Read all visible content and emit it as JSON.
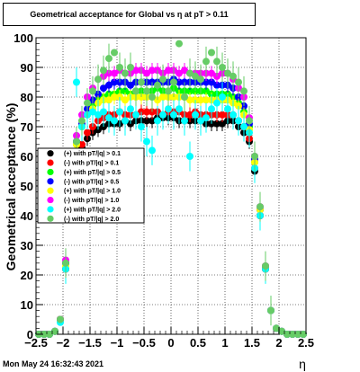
{
  "title": "Geometrical acceptance for Global vs  η at pT > 0.11",
  "footer": "Mon May 24 16:32:43 2021",
  "chart_data": {
    "type": "scatter",
    "xlabel": "η",
    "ylabel": "Geometrical acceptance (%)",
    "xlim": [
      -2.5,
      2.5
    ],
    "ylim": [
      0,
      100
    ],
    "x_ticks": [
      -2.5,
      -2,
      -1.5,
      -1,
      -0.5,
      0,
      0.5,
      1,
      1.5,
      2,
      2.5
    ],
    "x_tick_labels": [
      "−2.5",
      "−2",
      "−1.5",
      "−1",
      "−0.5",
      "0",
      "0.5",
      "1",
      "1.5",
      "2",
      "2.5"
    ],
    "y_ticks": [
      0,
      10,
      20,
      30,
      40,
      50,
      60,
      70,
      80,
      90,
      100
    ],
    "y_tick_labels": [
      "0",
      "10",
      "20",
      "30",
      "40",
      "50",
      "60",
      "70",
      "80",
      "90",
      "100"
    ],
    "grid": true,
    "legend_position": "middle-left",
    "x": [
      -2.45,
      -2.35,
      -2.25,
      -2.15,
      -2.05,
      -1.95,
      -1.85,
      -1.75,
      -1.65,
      -1.55,
      -1.45,
      -1.35,
      -1.25,
      -1.15,
      -1.05,
      -0.95,
      -0.85,
      -0.75,
      -0.65,
      -0.55,
      -0.45,
      -0.35,
      -0.25,
      -0.15,
      -0.05,
      0.05,
      0.15,
      0.25,
      0.35,
      0.45,
      0.55,
      0.65,
      0.75,
      0.85,
      0.95,
      1.05,
      1.15,
      1.25,
      1.35,
      1.45,
      1.55,
      1.65,
      1.75,
      1.85,
      1.95,
      2.05,
      2.15,
      2.25,
      2.35,
      2.45
    ],
    "series": [
      {
        "name": "(+) with pT/|q| > 0.1",
        "color": "#000000",
        "values": [
          0,
          0,
          0,
          1,
          5,
          22,
          45,
          58,
          63,
          66,
          68,
          69,
          70,
          71,
          71,
          71,
          72,
          71,
          72,
          72,
          72,
          72,
          73,
          73,
          73,
          73,
          72,
          72,
          72,
          72,
          72,
          71,
          71,
          71,
          71,
          72,
          72,
          70,
          68,
          65,
          55,
          40,
          22,
          8,
          2,
          1,
          0,
          0,
          0,
          0
        ]
      },
      {
        "name": "(-) with pT/|q| > 0.1",
        "color": "#ff0000",
        "values": [
          0,
          0,
          0,
          1,
          5,
          22,
          47,
          60,
          64,
          68,
          70,
          72,
          73,
          74,
          74,
          75,
          74,
          74,
          74,
          75,
          75,
          75,
          75,
          74,
          75,
          75,
          75,
          74,
          74,
          75,
          74,
          74,
          74,
          74,
          74,
          74,
          74,
          72,
          70,
          66,
          56,
          40,
          22,
          8,
          2,
          1,
          0,
          0,
          0,
          0
        ]
      },
      {
        "name": "(+) with pT/|q| > 0.5",
        "color": "#00ff00",
        "values": [
          0,
          0,
          0,
          1,
          5,
          24,
          50,
          64,
          70,
          74,
          77,
          79,
          80,
          81,
          81,
          82,
          82,
          81,
          82,
          82,
          82,
          82,
          83,
          82,
          82,
          83,
          82,
          82,
          82,
          82,
          82,
          82,
          81,
          81,
          81,
          81,
          80,
          78,
          75,
          70,
          58,
          42,
          23,
          8,
          2,
          1,
          0,
          0,
          0,
          0
        ]
      },
      {
        "name": "(-) with pT/|q| > 0.5",
        "color": "#0000ff",
        "values": [
          0,
          0,
          0,
          1,
          5,
          24,
          50,
          65,
          71,
          76,
          79,
          81,
          83,
          84,
          85,
          85,
          85,
          84,
          85,
          85,
          85,
          85,
          85,
          85,
          85,
          86,
          85,
          85,
          85,
          85,
          85,
          85,
          85,
          84,
          84,
          84,
          83,
          80,
          77,
          71,
          59,
          42,
          23,
          8,
          2,
          1,
          0,
          0,
          0,
          0
        ]
      },
      {
        "name": "(+) with pT/|q| > 1.0",
        "color": "#ffff00",
        "values": [
          0,
          0,
          0,
          1,
          5,
          23,
          50,
          64,
          70,
          74,
          76,
          78,
          79,
          79,
          80,
          80,
          79,
          80,
          80,
          80,
          80,
          80,
          79,
          80,
          80,
          80,
          80,
          80,
          79,
          79,
          79,
          79,
          79,
          79,
          79,
          79,
          78,
          77,
          74,
          69,
          58,
          42,
          23,
          8,
          2,
          1,
          0,
          0,
          0,
          0
        ]
      },
      {
        "name": "(-) with pT/|q| > 1.0",
        "color": "#ff00ff",
        "values": [
          0,
          0,
          0,
          1,
          5,
          25,
          52,
          67,
          74,
          80,
          83,
          86,
          87,
          88,
          88,
          89,
          88,
          88,
          89,
          89,
          88,
          89,
          89,
          88,
          89,
          89,
          88,
          89,
          88,
          88,
          88,
          88,
          88,
          87,
          88,
          88,
          86,
          83,
          80,
          73,
          60,
          43,
          23,
          8,
          2,
          1,
          0,
          0,
          0,
          0
        ]
      },
      {
        "name": "(+) with pT/|q| > 2.0",
        "color": "#00ffff",
        "values": [
          0,
          0,
          0,
          1,
          4,
          22,
          48,
          85,
          70,
          74,
          75,
          74,
          75,
          73,
          72,
          75,
          72,
          76,
          74,
          70,
          65,
          62,
          72,
          74,
          76,
          74,
          76,
          72,
          60,
          74,
          72,
          73,
          76,
          78,
          80,
          76,
          74,
          72,
          70,
          68,
          56,
          40,
          22,
          8,
          2,
          1,
          0,
          0,
          0,
          0
        ]
      },
      {
        "name": "(-) with pT/|q| > 2.0",
        "color": "#66cc66",
        "values": [
          0,
          0,
          0,
          1,
          5,
          24,
          50,
          65,
          72,
          78,
          82,
          86,
          89,
          93,
          95,
          90,
          88,
          90,
          82,
          85,
          82,
          80,
          84,
          86,
          82,
          85,
          98,
          80,
          88,
          87,
          86,
          92,
          95,
          92,
          90,
          88,
          87,
          85,
          82,
          72,
          60,
          43,
          23,
          8,
          2,
          1,
          0,
          0,
          0,
          0
        ]
      }
    ]
  }
}
